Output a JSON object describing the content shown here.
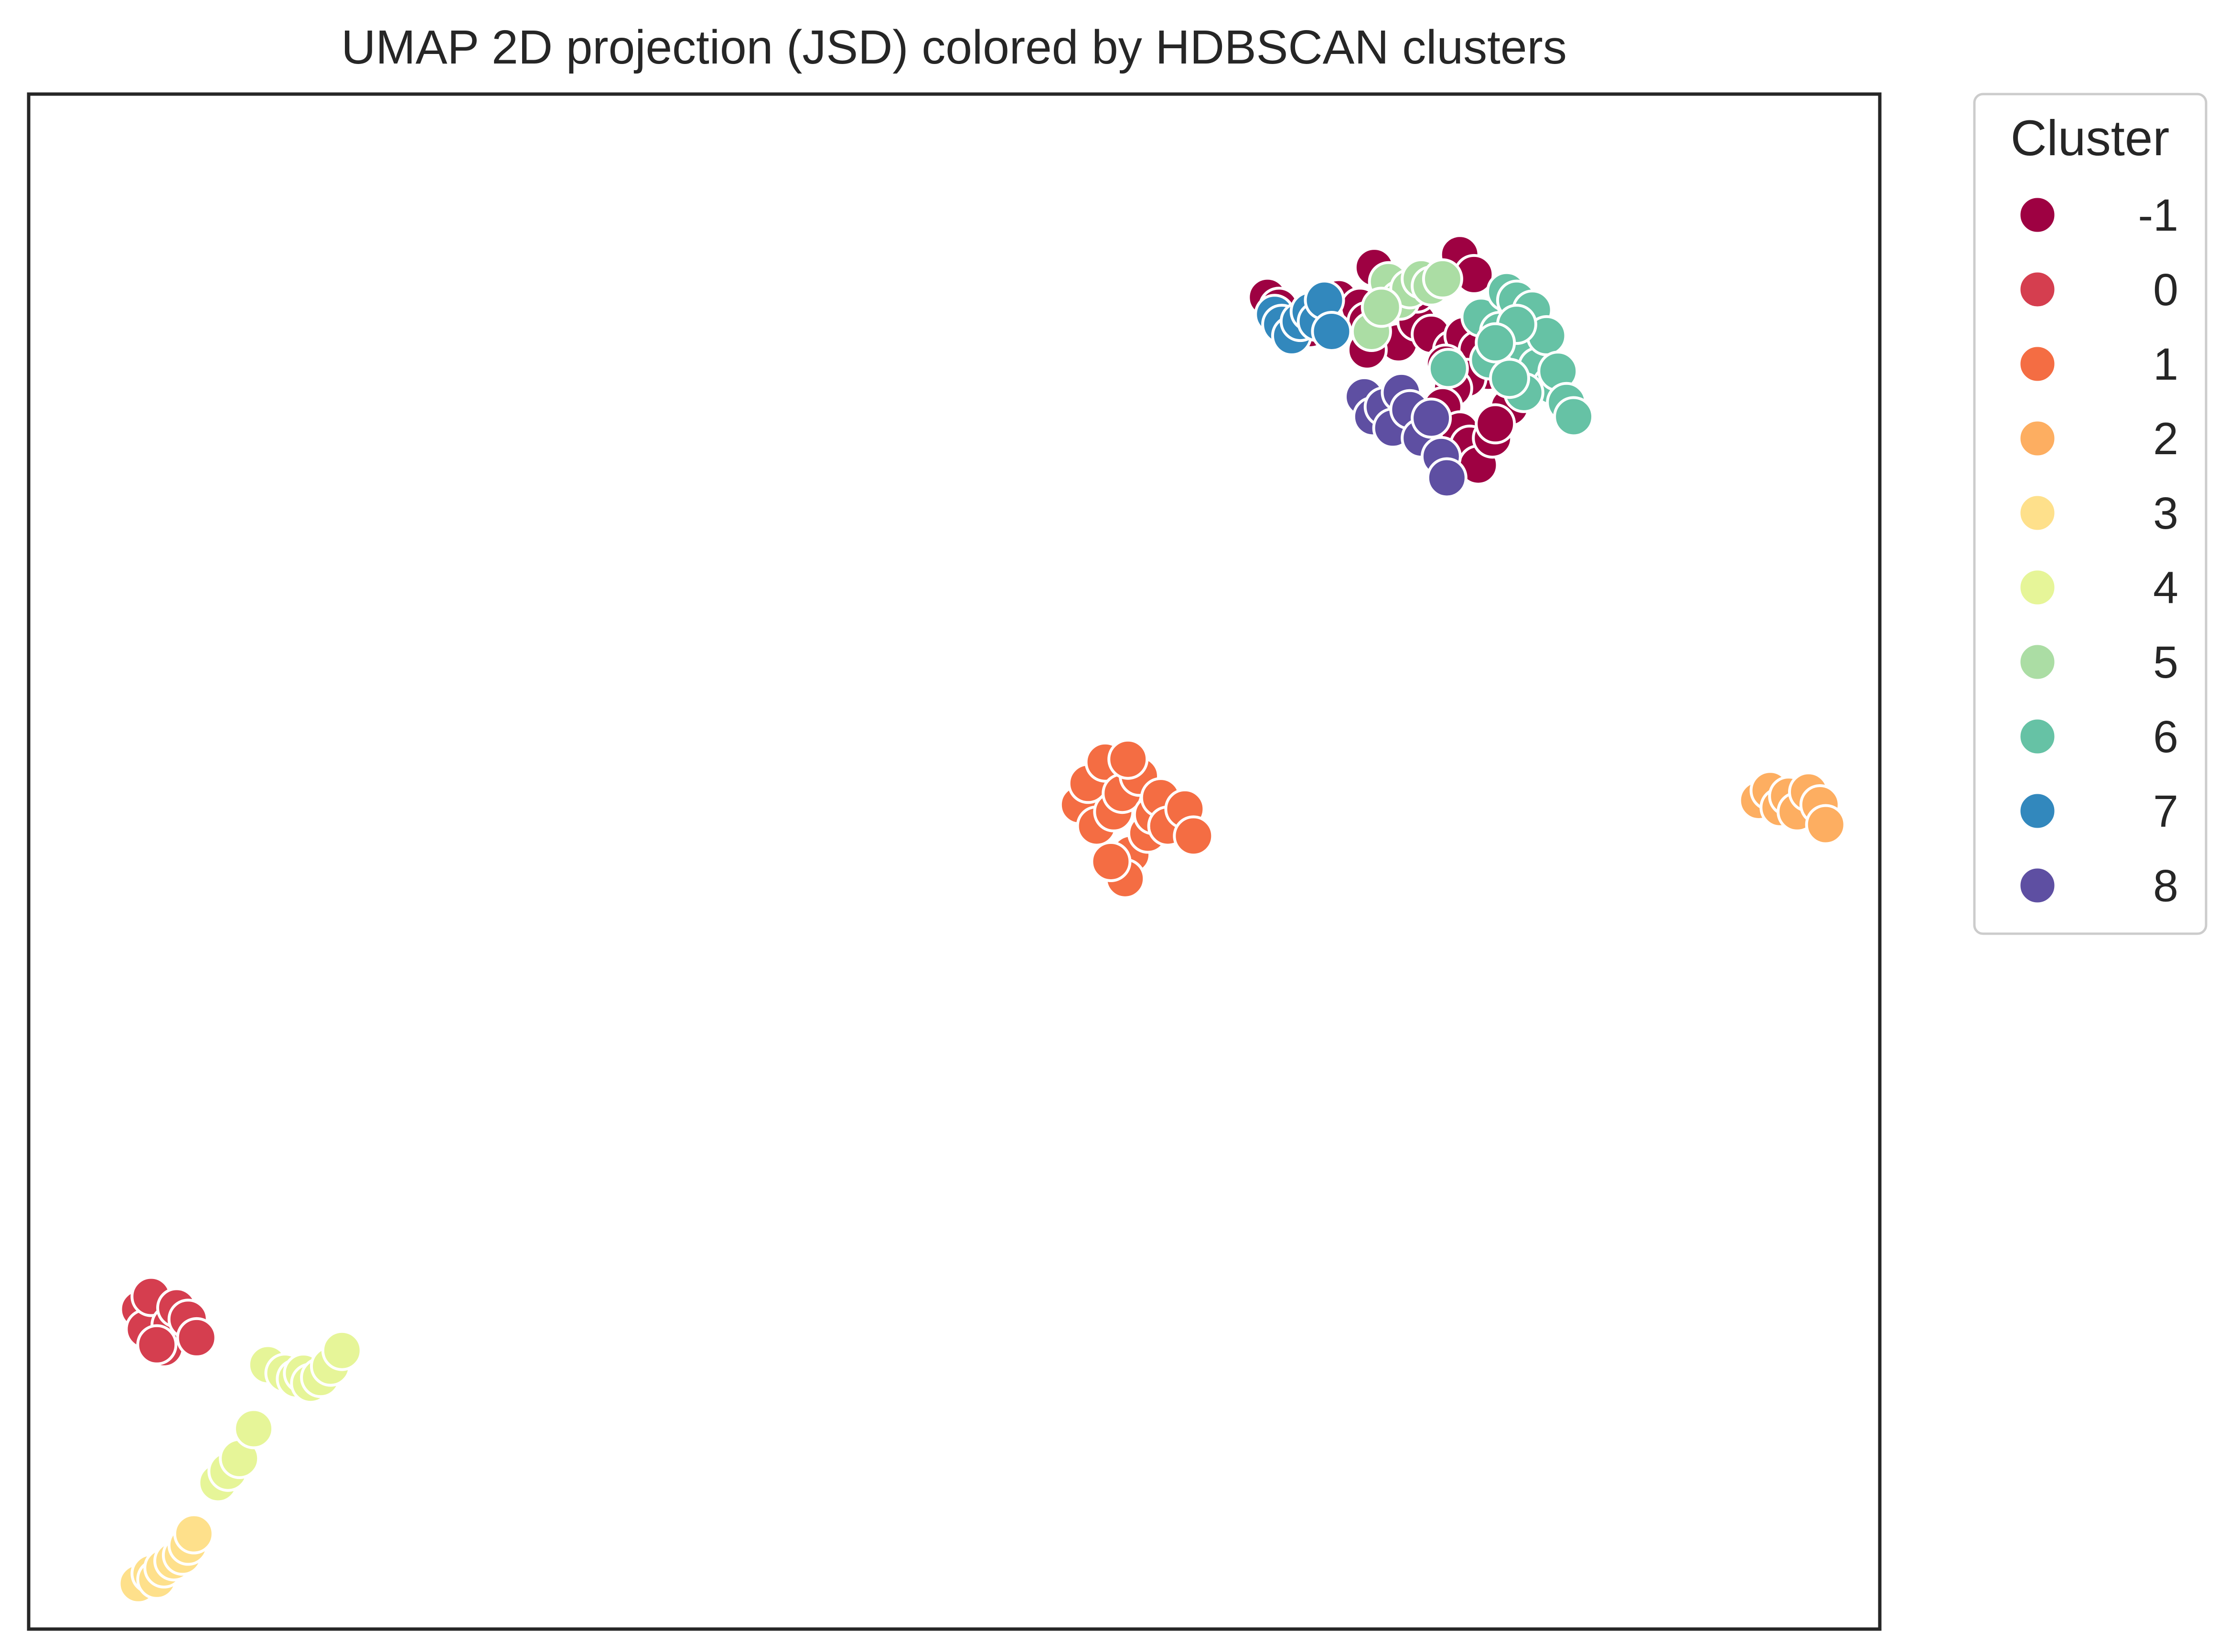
{
  "chart_data": {
    "type": "scatter",
    "title": "UMAP 2D projection (JSD) colored by HDBSCAN clusters",
    "xlabel": "",
    "ylabel": "",
    "xlim": [
      0,
      1300
    ],
    "ylim": [
      0,
      1080
    ],
    "grid": false,
    "axis_ticks": false,
    "legend": {
      "title": "Cluster",
      "placement": "outside-right-top"
    },
    "series": [
      {
        "name": "-1",
        "color": "#9e0142",
        "points": [
          [
            870,
            937
          ],
          [
            878,
            930
          ],
          [
            888,
            917
          ],
          [
            900,
            915
          ],
          [
            920,
            936
          ],
          [
            935,
            930
          ],
          [
            940,
            920
          ],
          [
            945,
            958
          ],
          [
            950,
            910
          ],
          [
            962,
            905
          ],
          [
            975,
            920
          ],
          [
            985,
            911
          ],
          [
            1000,
            900
          ],
          [
            1008,
            910
          ],
          [
            1018,
            900
          ],
          [
            1025,
            885
          ],
          [
            1010,
            880
          ],
          [
            1000,
            873
          ],
          [
            993,
            860
          ],
          [
            1005,
            843
          ],
          [
            1012,
            833
          ],
          [
            1018,
            819
          ],
          [
            1028,
            838
          ],
          [
            1040,
            860
          ],
          [
            1030,
            848
          ],
          [
            1005,
            967
          ],
          [
            1015,
            953
          ],
          [
            975,
            940
          ],
          [
            995,
            890
          ],
          [
            940,
            900
          ]
        ]
      },
      {
        "name": "0",
        "color": "#d53e4f",
        "points": [
          [
            78,
            225
          ],
          [
            82,
            211
          ],
          [
            86,
            234
          ],
          [
            95,
            198
          ],
          [
            100,
            214
          ],
          [
            104,
            226
          ],
          [
            112,
            218
          ],
          [
            118,
            205
          ],
          [
            90,
            200
          ]
        ]
      },
      {
        "name": "1",
        "color": "#f46d43",
        "points": [
          [
            738,
            580
          ],
          [
            744,
            595
          ],
          [
            750,
            565
          ],
          [
            756,
            610
          ],
          [
            762,
            575
          ],
          [
            768,
            588
          ],
          [
            774,
            545
          ],
          [
            780,
            600
          ],
          [
            786,
            560
          ],
          [
            790,
            573
          ],
          [
            795,
            585
          ],
          [
            800,
            565
          ],
          [
            812,
            577
          ],
          [
            818,
            558
          ],
          [
            770,
            528
          ],
          [
            760,
            540
          ],
          [
            772,
            612
          ]
        ]
      },
      {
        "name": "2",
        "color": "#fdae61",
        "points": [
          [
            1215,
            583
          ],
          [
            1223,
            590
          ],
          [
            1230,
            578
          ],
          [
            1236,
            586
          ],
          [
            1242,
            575
          ],
          [
            1250,
            589
          ],
          [
            1258,
            580
          ],
          [
            1262,
            566
          ]
        ]
      },
      {
        "name": "3",
        "color": "#fee08b",
        "points": [
          [
            77,
            32
          ],
          [
            86,
            39
          ],
          [
            90,
            35
          ],
          [
            95,
            43
          ],
          [
            102,
            48
          ],
          [
            108,
            52
          ],
          [
            112,
            59
          ],
          [
            116,
            67
          ]
        ]
      },
      {
        "name": "4",
        "color": "#e6f598",
        "points": [
          [
            133,
            103
          ],
          [
            140,
            111
          ],
          [
            148,
            120
          ],
          [
            158,
            141
          ],
          [
            168,
            186
          ],
          [
            180,
            180
          ],
          [
            188,
            176
          ],
          [
            193,
            180
          ],
          [
            198,
            173
          ],
          [
            205,
            177
          ],
          [
            212,
            185
          ],
          [
            220,
            196
          ]
        ]
      },
      {
        "name": "5",
        "color": "#abdda4",
        "points": [
          [
            943,
            913
          ],
          [
            955,
            948
          ],
          [
            963,
            935
          ],
          [
            970,
            943
          ],
          [
            978,
            950
          ],
          [
            985,
            945
          ],
          [
            993,
            950
          ],
          [
            950,
            930
          ]
        ]
      },
      {
        "name": "6",
        "color": "#66c2a5",
        "points": [
          [
            997,
            887
          ],
          [
            1020,
            923
          ],
          [
            1026,
            893
          ],
          [
            1033,
            913
          ],
          [
            1038,
            941
          ],
          [
            1045,
            935
          ],
          [
            1050,
            903
          ],
          [
            1056,
            928
          ],
          [
            1060,
            888
          ],
          [
            1066,
            910
          ],
          [
            1070,
            875
          ],
          [
            1074,
            885
          ],
          [
            1080,
            863
          ],
          [
            1085,
            853
          ],
          [
            1050,
            870
          ],
          [
            1040,
            880
          ],
          [
            1045,
            918
          ],
          [
            1030,
            905
          ]
        ]
      },
      {
        "name": "7",
        "color": "#3288bd",
        "points": [
          [
            875,
            925
          ],
          [
            880,
            918
          ],
          [
            887,
            910
          ],
          [
            893,
            920
          ],
          [
            900,
            927
          ],
          [
            905,
            920
          ],
          [
            910,
            935
          ],
          [
            915,
            913
          ]
        ]
      },
      {
        "name": "8",
        "color": "#5e4fa2",
        "points": [
          [
            938,
            867
          ],
          [
            944,
            853
          ],
          [
            952,
            860
          ],
          [
            958,
            845
          ],
          [
            964,
            870
          ],
          [
            970,
            858
          ],
          [
            978,
            838
          ],
          [
            985,
            852
          ],
          [
            992,
            825
          ],
          [
            996,
            810
          ]
        ]
      }
    ]
  }
}
